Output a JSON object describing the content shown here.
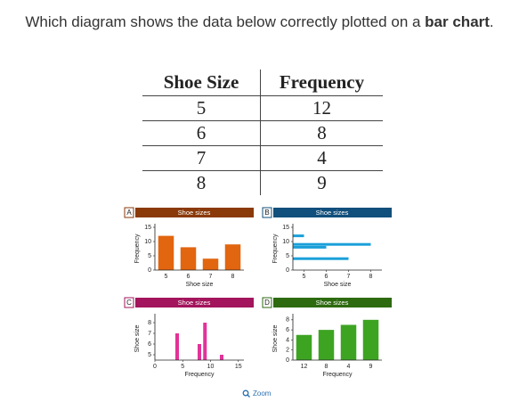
{
  "question": {
    "text": "Which diagram shows the data below correctly plotted on a ",
    "bold": "bar chart",
    "end": "."
  },
  "table": {
    "headers": [
      "Shoe Size",
      "Frequency"
    ],
    "rows": [
      [
        5,
        12
      ],
      [
        6,
        8
      ],
      [
        7,
        4
      ],
      [
        8,
        9
      ]
    ]
  },
  "options": [
    {
      "letter": "A",
      "header_color": "#8a3a08",
      "chart": {
        "type": "bar",
        "title": "Shoe sizes",
        "xlabel": "Shoe size",
        "ylabel": "Frequency",
        "color": "#e2650f",
        "categories": [
          "5",
          "6",
          "7",
          "8"
        ],
        "values": [
          12,
          8,
          4,
          9
        ],
        "ylim": [
          0,
          15
        ],
        "yticks": [
          0,
          5,
          10,
          15
        ]
      }
    },
    {
      "letter": "B",
      "header_color": "#114f7c",
      "chart": {
        "type": "hbar",
        "title": "Shoe sizes",
        "xlabel": "Shoe size",
        "ylabel": "Frequency",
        "color": "#1ba0d9",
        "y": [
          12,
          8,
          4,
          9
        ],
        "values": [
          5,
          6,
          7,
          8
        ],
        "xlim": [
          4.5,
          8.5
        ],
        "xticks": [
          5,
          6,
          7,
          8
        ],
        "ylim": [
          0,
          15
        ],
        "yticks": [
          0,
          5,
          10,
          15
        ]
      }
    },
    {
      "letter": "C",
      "header_color": "#a3155c",
      "chart": {
        "type": "bar",
        "title": "Shoe sizes",
        "xlabel": "Frequency",
        "ylabel": "Shoe size",
        "color": "#e23399",
        "x": [
          12,
          8,
          4,
          9
        ],
        "values": [
          5,
          6,
          7,
          8
        ],
        "xlim": [
          0,
          16
        ],
        "xticks": [
          0,
          5,
          10,
          15
        ],
        "ylim": [
          4.5,
          8.5
        ],
        "yticks": [
          5,
          6,
          7,
          8
        ]
      }
    },
    {
      "letter": "D",
      "header_color": "#2d6a10",
      "chart": {
        "type": "bar",
        "title": "Shoe sizes",
        "xlabel": "Frequency",
        "ylabel": "Shoe size",
        "color": "#3da422",
        "categories": [
          "12",
          "8",
          "4",
          "9"
        ],
        "values": [
          5,
          6,
          7,
          8
        ],
        "ylim": [
          0,
          8.5
        ],
        "yticks": [
          0,
          2,
          4,
          6,
          8
        ]
      }
    }
  ],
  "zoom": "Zoom"
}
